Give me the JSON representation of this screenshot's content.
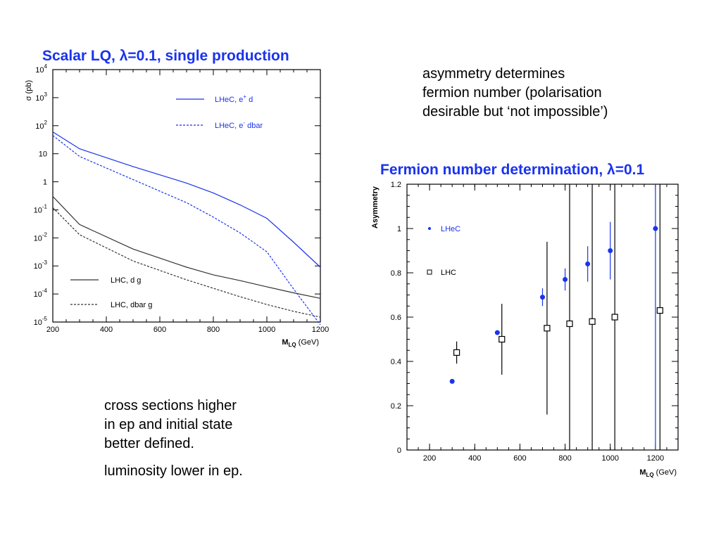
{
  "notes": {
    "top_right": [
      "asymmetry determines",
      "fermion number (polarisation",
      "desirable but ‘not impossible’)"
    ],
    "bottom_left": [
      "cross sections higher",
      "in ep and initial state",
      "better defined."
    ],
    "bottom_left_extra": "luminosity lower in ep."
  },
  "colors": {
    "blue": "#1a33ee",
    "black": "#000000",
    "lhc_gray": "#333333"
  },
  "chart_data": [
    {
      "type": "line",
      "title": "Scalar LQ, λ=0.1, single production",
      "xlabel": "M",
      "xlabel_sub": "LQ",
      "xlabel_unit": "(GeV)",
      "ylabel": "σ (pb)",
      "xlim": [
        200,
        1200
      ],
      "ylim": [
        1e-05,
        10000
      ],
      "yscale": "log",
      "x_ticks": [
        "200",
        "400",
        "600",
        "800",
        "1000",
        "1200"
      ],
      "y_ticks": [
        {
          "base": "10",
          "exp": "4"
        },
        {
          "base": "10",
          "exp": "3"
        },
        {
          "base": "10",
          "exp": "2"
        },
        {
          "base": "10",
          "exp": ""
        },
        {
          "base": "1",
          "exp": ""
        },
        {
          "base": "10",
          "exp": "-1"
        },
        {
          "base": "10",
          "exp": "-2"
        },
        {
          "base": "10",
          "exp": "-3"
        },
        {
          "base": "10",
          "exp": "-4"
        },
        {
          "base": "10",
          "exp": "-5"
        }
      ],
      "series": [
        {
          "name": "LHeC, e⁺ d",
          "label_main": "LHeC, e",
          "label_sup": "+",
          "label_end": " d",
          "color": "#1a33ee",
          "dash": "solid",
          "x": [
            200,
            300,
            500,
            700,
            800,
            900,
            1000,
            1100,
            1200
          ],
          "y": [
            60,
            15,
            3.5,
            0.9,
            0.4,
            0.15,
            0.05,
            0.007,
            0.0009
          ]
        },
        {
          "name": "LHeC, e⁻ dbar",
          "label_main": "LHeC, e",
          "label_sup": "-",
          "label_end": " dbar",
          "color": "#1a33ee",
          "dash": "dashed",
          "x": [
            200,
            300,
            500,
            700,
            800,
            900,
            1000,
            1100,
            1200
          ],
          "y": [
            45,
            8,
            1.2,
            0.18,
            0.055,
            0.015,
            0.0032,
            0.00015,
            8e-06
          ]
        },
        {
          "name": "LHC, d g",
          "label_main": "LHC, d g",
          "label_sup": "",
          "label_end": "",
          "color": "#333333",
          "dash": "solid",
          "x": [
            200,
            300,
            500,
            700,
            800,
            900,
            1000,
            1100,
            1200
          ],
          "y": [
            0.3,
            0.03,
            0.004,
            0.0009,
            0.00048,
            0.0003,
            0.00018,
            0.00011,
            7e-05
          ]
        },
        {
          "name": "LHC, dbar g",
          "label_main": "LHC, dbar g",
          "label_sup": "",
          "label_end": "",
          "color": "#333333",
          "dash": "dashed",
          "x": [
            200,
            300,
            500,
            700,
            800,
            900,
            1000,
            1100,
            1200
          ],
          "y": [
            0.12,
            0.013,
            0.0015,
            0.00032,
            0.00016,
            8e-05,
            4.2e-05,
            2.4e-05,
            1.5e-05
          ]
        }
      ],
      "grid": false,
      "legend": "right"
    },
    {
      "type": "scatter",
      "title": "Fermion number determination, λ=0.1",
      "xlabel": "M",
      "xlabel_sub": "LQ",
      "xlabel_unit": "(GeV)",
      "ylabel": "Asymmetry",
      "xlim": [
        100,
        1300
      ],
      "ylim": [
        0,
        1.2
      ],
      "x_ticks": [
        "200",
        "400",
        "600",
        "800",
        "1000",
        "1200"
      ],
      "y_ticks": [
        "1.2",
        "1",
        "0.8",
        "0.6",
        "0.4",
        "0.2",
        "0"
      ],
      "series": [
        {
          "name": "LHeC",
          "marker": "filled-circle",
          "color": "#1a33ee",
          "x": [
            300,
            500,
            700,
            800,
            900,
            1000,
            1200
          ],
          "y": [
            0.31,
            0.53,
            0.69,
            0.77,
            0.84,
            0.9,
            1.0
          ],
          "err": [
            0,
            0.01,
            0.04,
            0.05,
            0.08,
            0.13,
            2.0
          ]
        },
        {
          "name": "LHC",
          "marker": "open-square",
          "color": "#000000",
          "x": [
            320,
            520,
            720,
            820,
            920,
            1020,
            1220
          ],
          "y": [
            0.44,
            0.5,
            0.55,
            0.57,
            0.58,
            0.6,
            0.63
          ],
          "err": [
            0.05,
            0.16,
            0.39,
            2.0,
            2.0,
            2.0,
            2.0
          ]
        }
      ],
      "grid": false,
      "legend": "top-left"
    }
  ]
}
